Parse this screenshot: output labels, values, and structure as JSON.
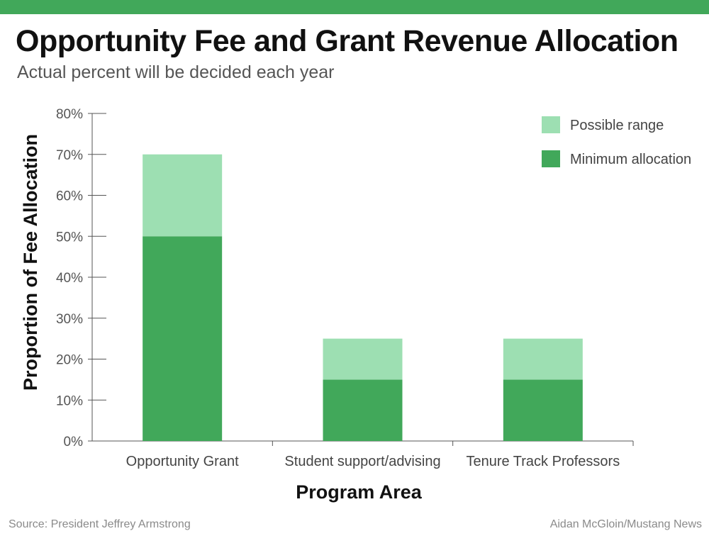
{
  "header": {
    "title": "Opportunity Fee and Grant Revenue Allocation",
    "subtitle": "Actual percent will be decided each year"
  },
  "footer": {
    "source": "Source: President Jeffrey Armstrong",
    "credit": "Aidan McGloin/Mustang News"
  },
  "colors": {
    "accent": "#41a85a",
    "minimum": "#41a85a",
    "range": "#9ddfb2"
  },
  "chart_data": {
    "type": "bar",
    "stacked": true,
    "title": "Opportunity Fee and Grant Revenue Allocation",
    "subtitle": "Actual percent will be decided each year",
    "xlabel": "Program Area",
    "ylabel": "Proportion of Fee Allocation",
    "categories": [
      "Opportunity Grant",
      "Student support/advising",
      "Tenure Track Professors"
    ],
    "series": [
      {
        "name": "Minimum allocation",
        "values": [
          50,
          15,
          15
        ],
        "color": "#41a85a"
      },
      {
        "name": "Possible range",
        "values": [
          20,
          10,
          10
        ],
        "color": "#9ddfb2"
      }
    ],
    "ylim": [
      0,
      80
    ],
    "yticks": [
      "0%",
      "10%",
      "20%",
      "30%",
      "40%",
      "50%",
      "60%",
      "70%",
      "80%"
    ],
    "legend": {
      "position": "top-right",
      "entries": [
        "Possible range",
        "Minimum allocation"
      ]
    },
    "grid": false
  }
}
